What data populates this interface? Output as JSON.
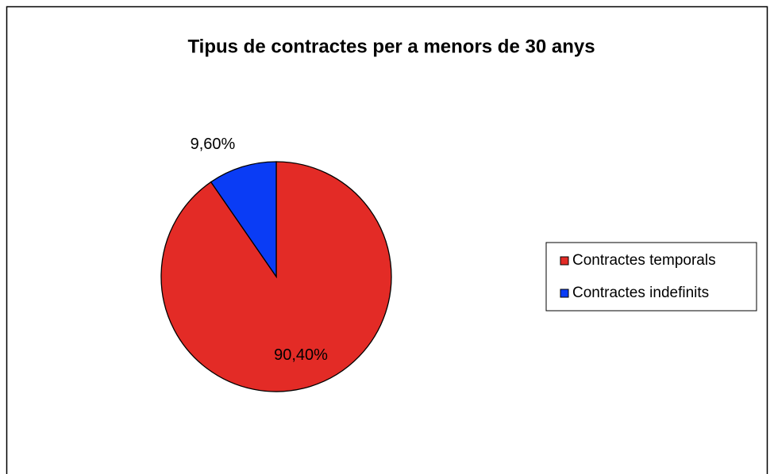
{
  "chart_data": {
    "type": "pie",
    "title": "Tipus de contractes per a menors de 30 anys",
    "categories": [
      "Contractes temporals",
      "Contractes indefinits"
    ],
    "values": [
      90.4,
      9.6
    ],
    "value_labels": [
      "90,40%",
      "9,60%"
    ],
    "colors": [
      "#e32b26",
      "#0a3cf5"
    ],
    "legend": "right"
  }
}
